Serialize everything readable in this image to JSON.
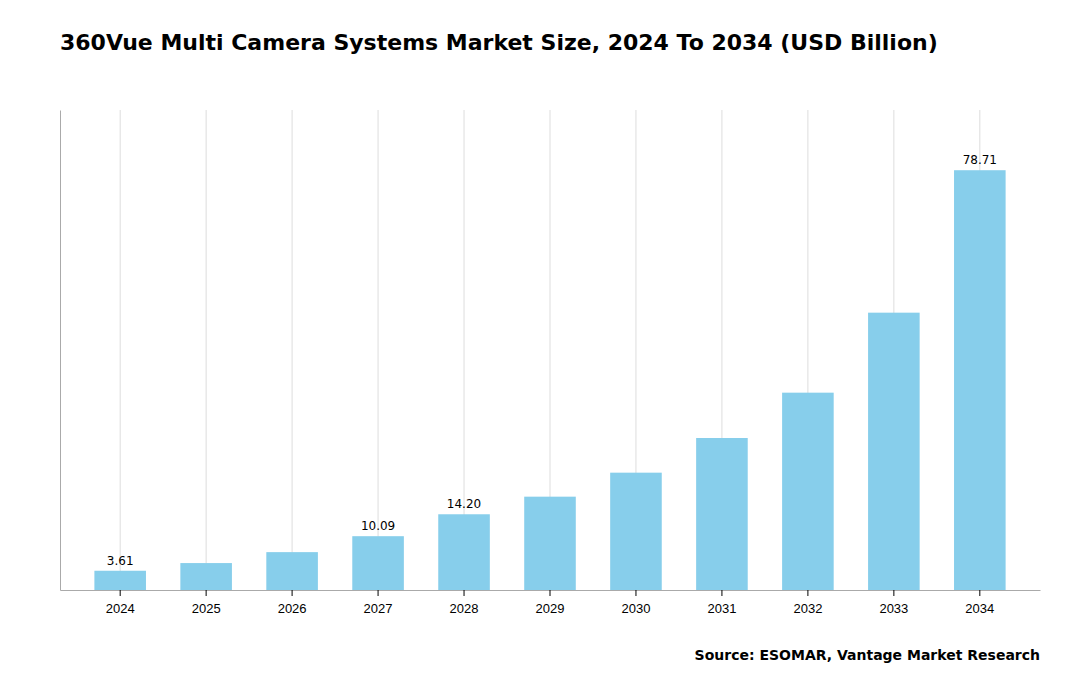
{
  "chart_data": {
    "type": "bar",
    "title": "360Vue Multi Camera Systems Market Size, 2024 To 2034 (USD Billion)",
    "categories": [
      "2024",
      "2025",
      "2026",
      "2027",
      "2028",
      "2029",
      "2030",
      "2031",
      "2032",
      "2033",
      "2034"
    ],
    "values": [
      3.61,
      5.05,
      7.1,
      10.09,
      14.2,
      17.5,
      22.0,
      28.5,
      37.0,
      52.0,
      78.71
    ],
    "value_labels": [
      "3.61",
      null,
      null,
      "10.09",
      "14.20",
      null,
      null,
      null,
      null,
      null,
      "78.71"
    ],
    "data_labels": true,
    "color": "#87CEEB",
    "ylim": [
      0,
      90
    ],
    "grid": true,
    "tick_labels": "x",
    "annotations": [
      "Source: ESOMAR, Vantage Market Research"
    ]
  }
}
